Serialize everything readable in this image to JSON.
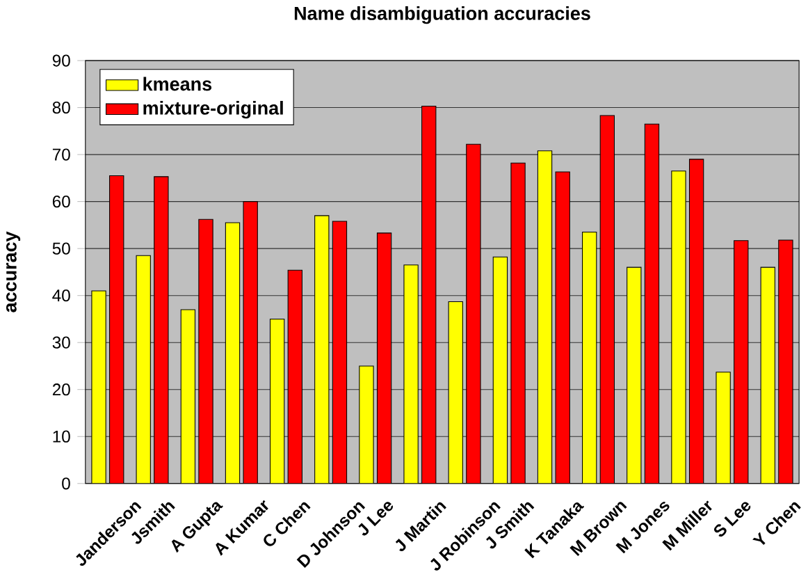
{
  "chart_data": {
    "type": "bar",
    "title": "Name disambiguation accuracies",
    "ylabel": "accuracy",
    "categories": [
      "Janderson",
      "Jsmith",
      "A Gupta",
      "A Kumar",
      "C Chen",
      "D Johnson",
      "J Lee",
      "J Martin",
      "J Robinson",
      "J Smith",
      "K Tanaka",
      "M Brown",
      "M Jones",
      "M Miller",
      "S Lee",
      "Y Chen"
    ],
    "series": [
      {
        "name": "kmeans",
        "color": "#ffff00",
        "values": [
          41,
          48.5,
          37,
          55.5,
          35,
          57,
          25,
          46.5,
          38.7,
          48.2,
          70.8,
          53.5,
          46,
          66.5,
          23.7,
          46
        ]
      },
      {
        "name": "mixture-original",
        "color": "#ff0000",
        "values": [
          65.5,
          65.3,
          56.2,
          60,
          45.4,
          55.8,
          53.3,
          80.3,
          72.2,
          68.2,
          66.3,
          78.3,
          76.5,
          69,
          51.7,
          51.8
        ]
      }
    ],
    "ylim": [
      0,
      90
    ],
    "yticks": [
      0,
      10,
      20,
      30,
      40,
      50,
      60,
      70,
      80,
      90
    ],
    "grid": "y",
    "legend": "top left"
  }
}
